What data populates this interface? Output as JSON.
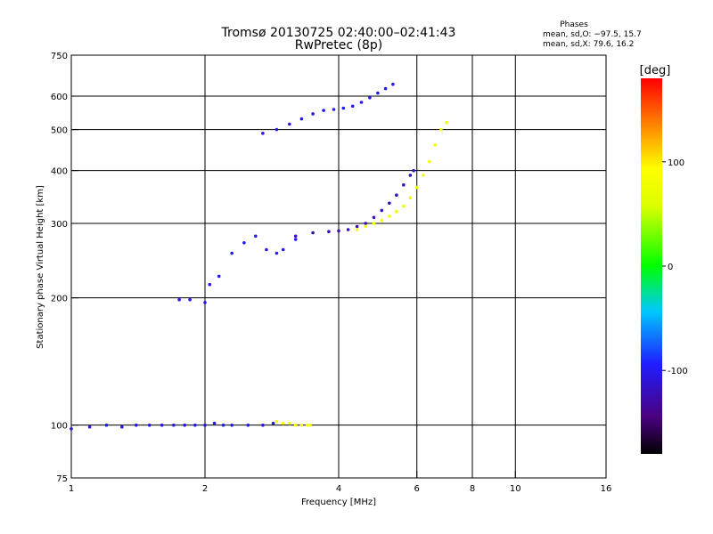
{
  "chart_data": {
    "type": "scatter",
    "title": "Tromsø 20130725 02:40:00–02:41:43",
    "subtitle": "RwPretec (8p)",
    "phases_header": "Phases",
    "phases_o": "mean, sd,O: −97.5, 15.7",
    "phases_x": "mean, sd,X:  79.6, 16.2",
    "xlabel": "Frequency [MHz]",
    "ylabel": "Stationary phase Virtual Height [km]",
    "xscale": "log",
    "yscale": "log",
    "xlim": [
      1,
      16
    ],
    "ylim": [
      75,
      750
    ],
    "xticks": [
      1,
      2,
      4,
      6,
      8,
      10,
      16
    ],
    "yticks": [
      75,
      100,
      200,
      300,
      400,
      500,
      600,
      750
    ],
    "x_gridlines": [
      2,
      4,
      6,
      8,
      10
    ],
    "y_gridlines": [
      100,
      200,
      300,
      400,
      500,
      600
    ],
    "colorbar": {
      "label": "[deg]",
      "range": [
        -180,
        180
      ],
      "ticks": [
        100,
        0,
        -100
      ]
    },
    "series": [
      {
        "name": "E-layer trace (O, blue)",
        "phase": -100,
        "x": [
          1.0,
          1.1,
          1.2,
          1.3,
          1.4,
          1.5,
          1.6,
          1.7,
          1.8,
          1.9,
          2.0,
          2.1,
          2.2,
          2.3,
          2.5,
          2.7,
          2.85
        ],
        "y": [
          98,
          99,
          100,
          99,
          100,
          100,
          100,
          100,
          100,
          100,
          100,
          101,
          100,
          100,
          100,
          100,
          101
        ]
      },
      {
        "name": "E-layer trace (X, yellow)",
        "phase": 85,
        "x": [
          2.9,
          3.0,
          3.1,
          3.2,
          3.3,
          3.4,
          3.45
        ],
        "y": [
          102,
          101,
          101,
          100,
          100,
          100,
          100
        ]
      },
      {
        "name": "F-layer lower trace (O, blue)",
        "phase": -100,
        "x": [
          1.75,
          1.85,
          2.0,
          2.05,
          2.15,
          2.3,
          2.45,
          2.6,
          2.75,
          2.9,
          3.0,
          3.2
        ],
        "y": [
          198,
          198,
          195,
          215,
          225,
          255,
          270,
          280,
          260,
          255,
          260,
          275
        ]
      },
      {
        "name": "F-layer main trace (O, purple-blue)",
        "phase": -120,
        "x": [
          3.2,
          3.5,
          3.8,
          4.0,
          4.2,
          4.4,
          4.6,
          4.8,
          5.0,
          5.2,
          5.4,
          5.6,
          5.8,
          5.9
        ],
        "y": [
          280,
          285,
          287,
          288,
          290,
          295,
          300,
          310,
          322,
          335,
          350,
          370,
          390,
          400
        ]
      },
      {
        "name": "F-layer X trace (yellow-green)",
        "phase": 80,
        "x": [
          4.4,
          4.6,
          4.8,
          5.0,
          5.2,
          5.4,
          5.6,
          5.8,
          6.0,
          6.2,
          6.4,
          6.6,
          6.8,
          7.0
        ],
        "y": [
          290,
          295,
          300,
          305,
          312,
          320,
          330,
          345,
          365,
          390,
          420,
          460,
          500,
          520
        ]
      },
      {
        "name": "Upper F echo (O, blue)",
        "phase": -100,
        "x": [
          2.7,
          2.9,
          3.1,
          3.3,
          3.5,
          3.7,
          3.9,
          4.1,
          4.3,
          4.5,
          4.7,
          4.9,
          5.1,
          5.3
        ],
        "y": [
          490,
          500,
          515,
          530,
          545,
          555,
          558,
          562,
          568,
          580,
          595,
          610,
          625,
          640
        ]
      }
    ]
  }
}
